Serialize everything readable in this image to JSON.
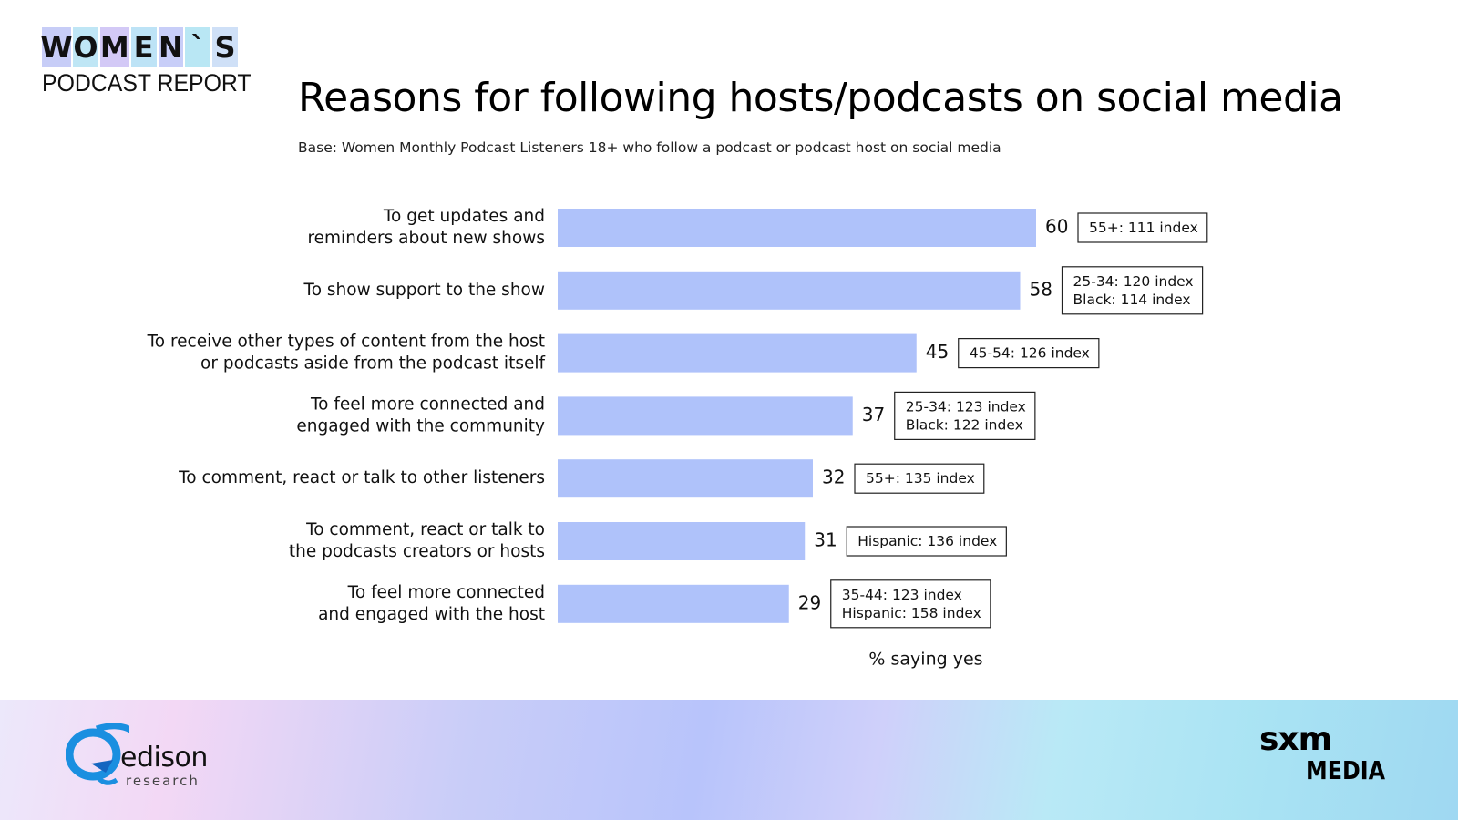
{
  "logo": {
    "letters": [
      "W",
      "O",
      "M",
      "E",
      "N",
      "`",
      "S"
    ],
    "letter_colors": [
      "#c7cdf7",
      "#bfe6f5",
      "#d3c9f6",
      "#bde3f6",
      "#c8cef8",
      "#b9e7f4",
      "#cfe0f7"
    ],
    "subtitle": "PODCAST REPORT"
  },
  "header": {
    "title": "Reasons for following hosts/podcasts on social media",
    "base": "Base: Women Monthly Podcast Listeners 18+ who follow a podcast or podcast host on social media"
  },
  "chart_data": {
    "type": "bar",
    "orientation": "horizontal",
    "bar_color": "#afc2fa",
    "categories": [
      [
        "To get updates and",
        "reminders about new shows"
      ],
      [
        "To show support to the show"
      ],
      [
        "To receive other types of content from the host",
        "or podcasts aside from the podcast itself"
      ],
      [
        "To feel more connected and",
        "engaged with the community"
      ],
      [
        "To comment, react or talk to other listeners"
      ],
      [
        "To comment, react or talk to",
        "the podcasts creators or hosts"
      ],
      [
        "To feel more connected",
        "and engaged with the host"
      ]
    ],
    "values": [
      60,
      58,
      45,
      37,
      32,
      31,
      29
    ],
    "annotations": [
      [
        "55+: 111 index"
      ],
      [
        "25-34: 120 index",
        "Black: 114 index"
      ],
      [
        "45-54: 126 index"
      ],
      [
        "25-34: 123 index",
        "Black: 122 index"
      ],
      [
        "55+: 135 index"
      ],
      [
        "Hispanic: 136 index"
      ],
      [
        "35-44: 123 index",
        "Hispanic: 158 index"
      ]
    ],
    "xlabel": "% saying yes",
    "xlim": [
      0,
      60
    ]
  },
  "footer": {
    "left_brand_word": "edison",
    "left_brand_sub": "research",
    "right_brand_top": "sxm",
    "right_brand_bottom": "MEDIA",
    "edison_colors": [
      "#1a8fe0",
      "#1565c0"
    ]
  }
}
